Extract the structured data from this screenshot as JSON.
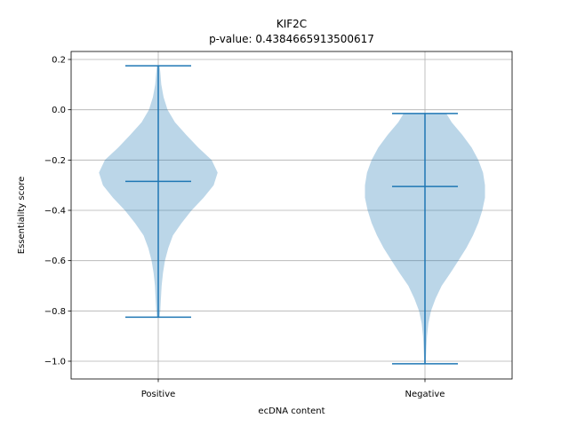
{
  "chart_data": {
    "type": "violin",
    "title": "KIF2C",
    "subtitle": "p-value: 0.4384665913500617",
    "xlabel": "ecDNA content",
    "ylabel": "Essentiality score",
    "ylim": [
      -1.07,
      0.23
    ],
    "yticks": [
      0.2,
      0.0,
      -0.2,
      -0.4,
      -0.6,
      -0.8,
      -1.0
    ],
    "ytick_labels": [
      "0.2",
      "0.0",
      "−0.2",
      "−0.4",
      "−0.6",
      "−0.8",
      "−1.0"
    ],
    "categories": [
      "Positive",
      "Negative"
    ],
    "grid": true,
    "colors": {
      "fill": "#1f77b4",
      "fill_opacity": 0.3,
      "line": "#1f77b4"
    },
    "series": [
      {
        "category": "Positive",
        "max": 0.175,
        "median": -0.285,
        "min": -0.825,
        "density": [
          [
            -0.825,
            0.02
          ],
          [
            -0.8,
            0.03
          ],
          [
            -0.75,
            0.04
          ],
          [
            -0.7,
            0.05
          ],
          [
            -0.65,
            0.07
          ],
          [
            -0.6,
            0.1
          ],
          [
            -0.55,
            0.15
          ],
          [
            -0.5,
            0.22
          ],
          [
            -0.45,
            0.35
          ],
          [
            -0.4,
            0.5
          ],
          [
            -0.35,
            0.68
          ],
          [
            -0.3,
            0.83
          ],
          [
            -0.25,
            0.89
          ],
          [
            -0.2,
            0.8
          ],
          [
            -0.15,
            0.6
          ],
          [
            -0.1,
            0.42
          ],
          [
            -0.05,
            0.25
          ],
          [
            0.0,
            0.14
          ],
          [
            0.05,
            0.08
          ],
          [
            0.1,
            0.045
          ],
          [
            0.15,
            0.03
          ],
          [
            0.175,
            0.02
          ]
        ]
      },
      {
        "category": "Negative",
        "max": -0.015,
        "median": -0.305,
        "min": -1.01,
        "density": [
          [
            -1.01,
            0.01
          ],
          [
            -0.95,
            0.02
          ],
          [
            -0.9,
            0.03
          ],
          [
            -0.85,
            0.05
          ],
          [
            -0.8,
            0.09
          ],
          [
            -0.75,
            0.16
          ],
          [
            -0.7,
            0.25
          ],
          [
            -0.65,
            0.38
          ],
          [
            -0.6,
            0.5
          ],
          [
            -0.55,
            0.62
          ],
          [
            -0.5,
            0.72
          ],
          [
            -0.45,
            0.8
          ],
          [
            -0.4,
            0.86
          ],
          [
            -0.35,
            0.9
          ],
          [
            -0.3,
            0.9
          ],
          [
            -0.25,
            0.87
          ],
          [
            -0.2,
            0.8
          ],
          [
            -0.15,
            0.7
          ],
          [
            -0.1,
            0.56
          ],
          [
            -0.05,
            0.4
          ],
          [
            -0.015,
            0.32
          ]
        ]
      }
    ]
  }
}
